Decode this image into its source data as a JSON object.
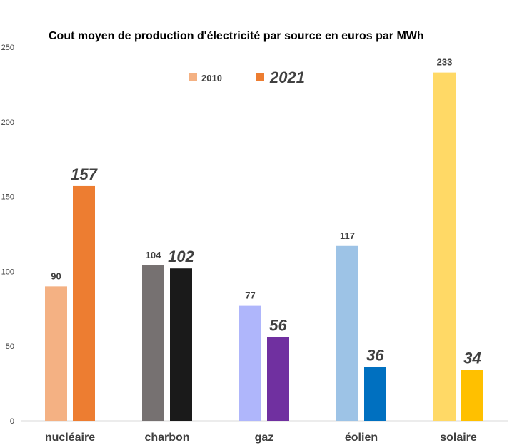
{
  "chart_data": {
    "type": "bar",
    "title": "Cout moyen de production d'électricité par source en euros par MWh",
    "xlabel": "",
    "ylabel": "",
    "ylim": [
      0,
      250
    ],
    "yticks": [
      "0",
      "50",
      "100",
      "150",
      "200",
      "250"
    ],
    "grid": false,
    "legend_position": "top-center",
    "categories": [
      "nucléaire",
      "charbon",
      "gaz",
      "éolien",
      "solaire"
    ],
    "series": [
      {
        "name": "2010",
        "values": [
          90,
          104,
          77,
          117,
          233
        ],
        "labels": [
          "90",
          "104",
          "77",
          "117",
          "233"
        ],
        "colors": [
          "#F4B183",
          "#767171",
          "#AFB6FB",
          "#9DC3E6",
          "#FFD966"
        ],
        "legend_color": "#F4B183"
      },
      {
        "name": "2021",
        "values": [
          157,
          102,
          56,
          36,
          34
        ],
        "labels": [
          "157",
          "102",
          "56",
          "36",
          "34"
        ],
        "colors": [
          "#ED7D31",
          "#1A1A1A",
          "#7030A0",
          "#0070C0",
          "#FFC000"
        ],
        "legend_color": "#ED7D31"
      }
    ]
  }
}
